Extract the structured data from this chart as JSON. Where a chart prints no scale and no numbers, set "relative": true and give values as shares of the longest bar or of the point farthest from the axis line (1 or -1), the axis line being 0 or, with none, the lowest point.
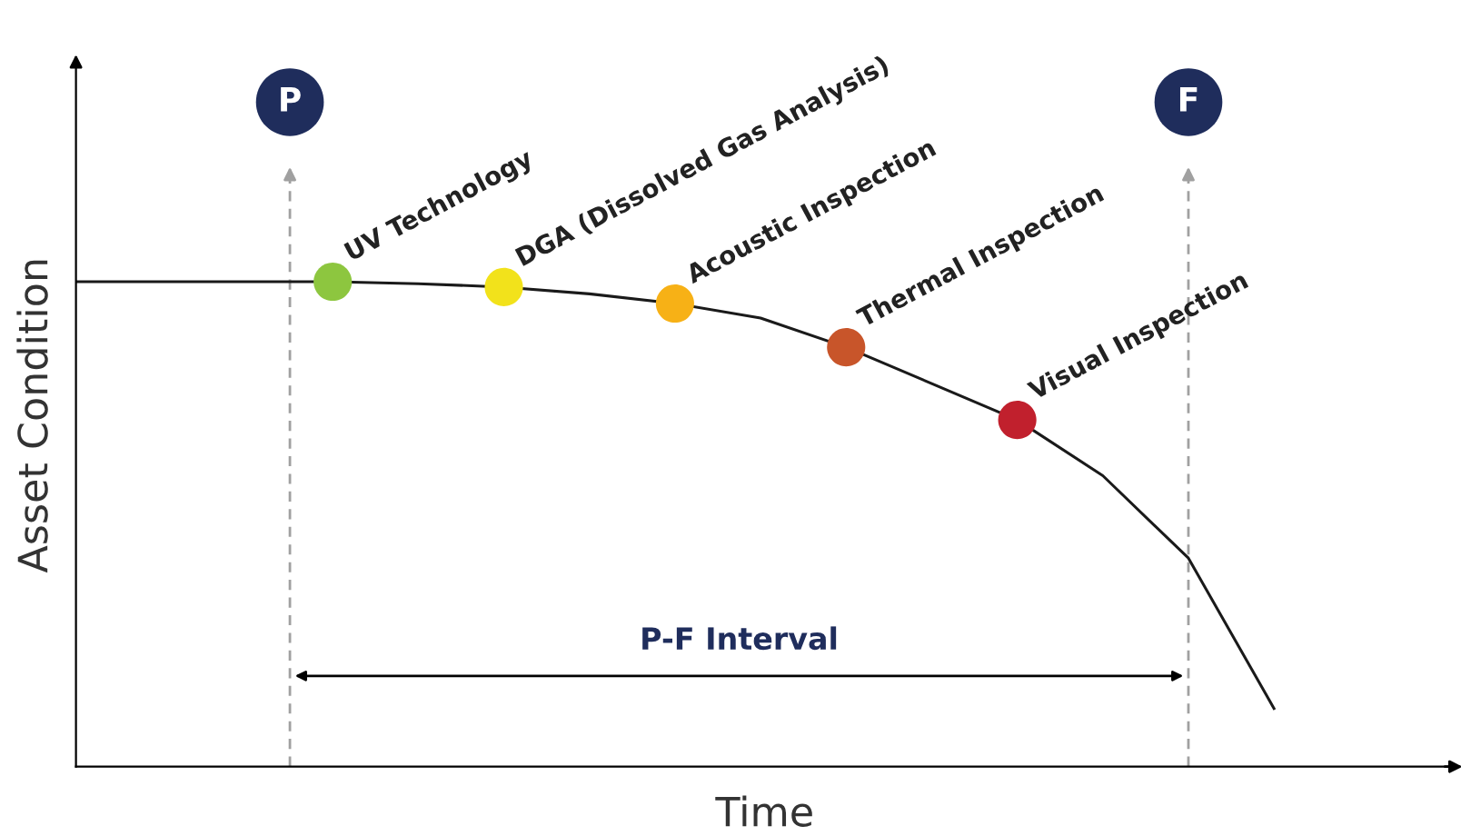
{
  "chart_data": {
    "type": "line",
    "relative": true,
    "xlabel": "Time",
    "ylabel": "Asset Condition",
    "categories": [
      null,
      null,
      null,
      null,
      null,
      null,
      null,
      null,
      null,
      null,
      null,
      null,
      null,
      null,
      null,
      null,
      null
    ],
    "series": [
      {
        "color": "#1a1a1a",
        "values": [
          1.0,
          1.0,
          1.0,
          1.0,
          0.996,
          0.989,
          0.975,
          0.955,
          0.925,
          0.865,
          0.79,
          0.715,
          0.6,
          0.43,
          0.12,
          null,
          null
        ],
        "colors": [
          null,
          null,
          null,
          "#8dc63f",
          null,
          "#f2e21b",
          null,
          "#f7b116",
          null,
          "#c8552a",
          null,
          "#c1202d",
          null,
          null,
          null,
          null,
          null
        ]
      }
    ],
    "annotations": [
      "UV Technology",
      "DGA (Dissolved Gas Analysis)",
      "Acoustic Inspection",
      "Thermal Inspection",
      "Visual Inspection",
      "P-F Interval",
      "P",
      "F"
    ]
  }
}
